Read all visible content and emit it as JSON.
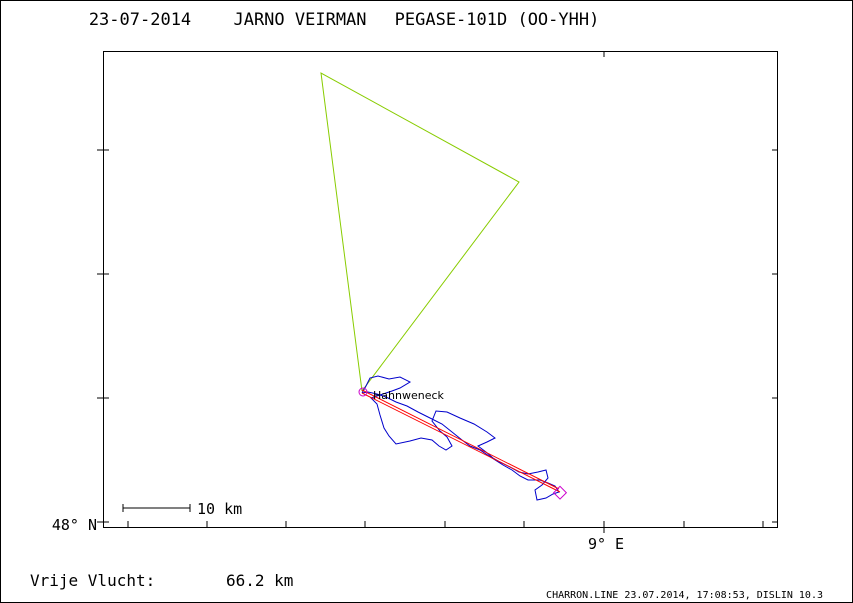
{
  "title": {
    "date": "23-07-2014",
    "pilot": "JARNO VEIRMAN",
    "glider": "PEGASE-101D (OO-YHH)"
  },
  "axes": {
    "lat_label": "48° N",
    "lon_label": "9° E"
  },
  "scale_bar": {
    "label": "10 km"
  },
  "waypoint": {
    "label": "Hahnweneck"
  },
  "summary": {
    "label": "Vrije Vlucht:",
    "distance": "66.2 km"
  },
  "footer": {
    "credit": "CHARRON.LINE 23.07.2014, 17:08:53, DISLIN 10.3"
  },
  "colors": {
    "frame": "#000000",
    "task": "#88cc00",
    "track": "#0000cc",
    "free_flight": "#ff0000",
    "marker": "#cc00cc"
  }
}
